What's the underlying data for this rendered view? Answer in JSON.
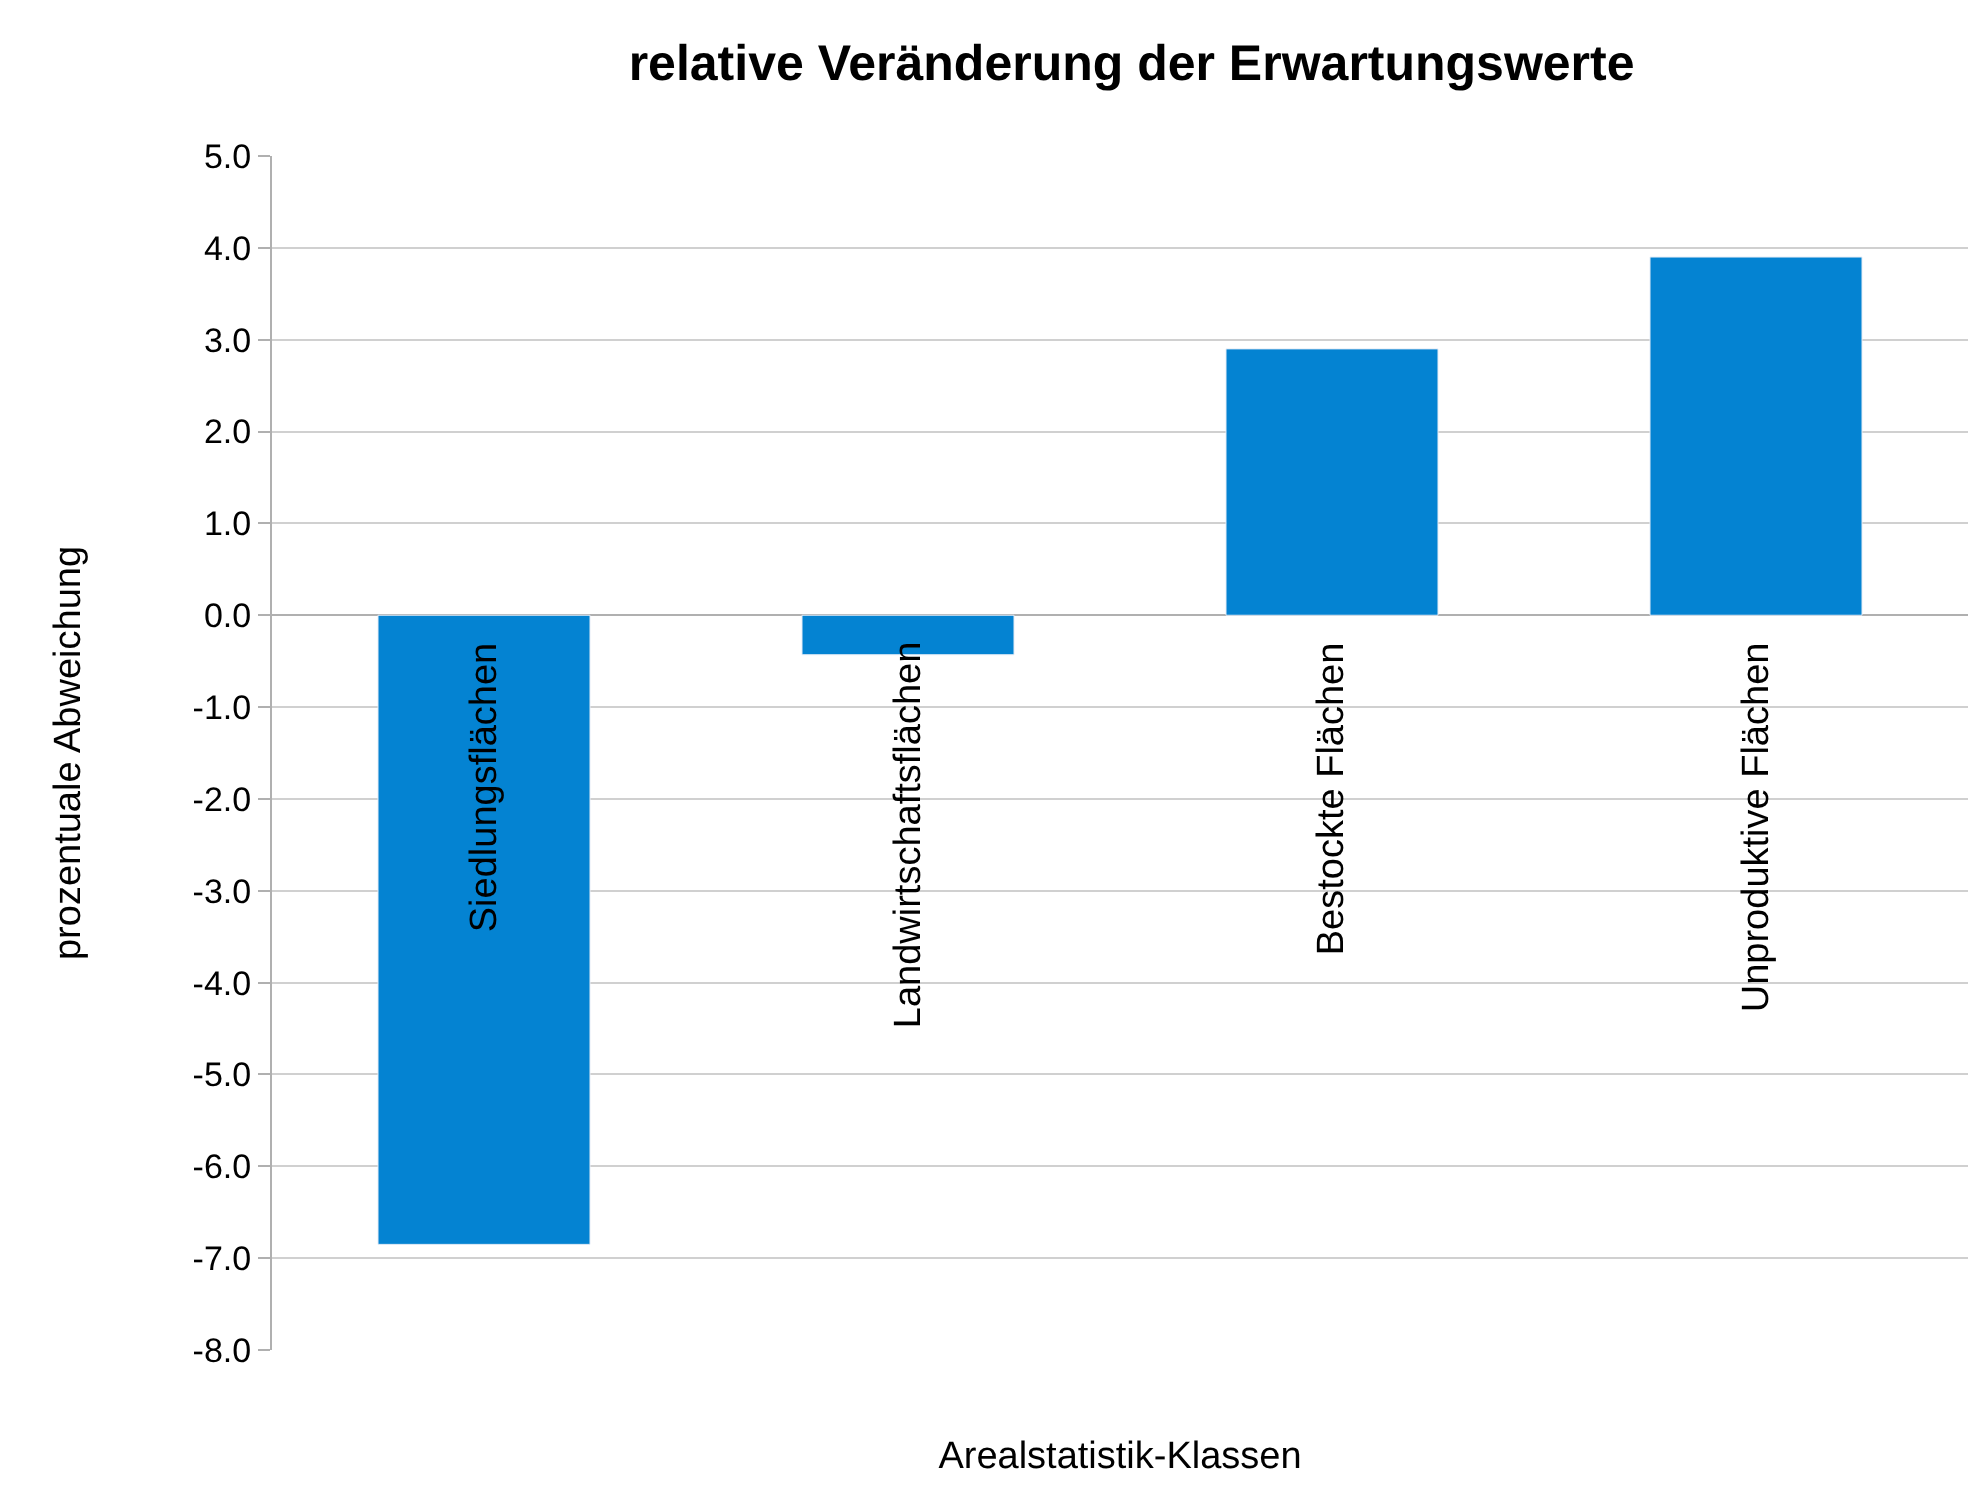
{
  "chart_data": {
    "type": "bar",
    "title": "relative Veränderung der Erwartungswerte",
    "xlabel": "Arealstatistik-Klassen",
    "ylabel": "prozentuale Abweichung",
    "categories": [
      "Siedlungsflächen",
      "Landwirtschaftsflächen",
      "Bestockte Flächen",
      "Unproduktive Flächen"
    ],
    "values": [
      -6.85,
      -0.43,
      2.9,
      3.9
    ],
    "color": "#0483d2",
    "ylim": [
      -8,
      5
    ],
    "yticks": [
      {
        "value": -8,
        "label": "-8.0"
      },
      {
        "value": -7,
        "label": "-7.0"
      },
      {
        "value": -6,
        "label": "-6.0"
      },
      {
        "value": -5,
        "label": "-5.0"
      },
      {
        "value": -4,
        "label": "-4.0"
      },
      {
        "value": -3,
        "label": "-3.0"
      },
      {
        "value": -2,
        "label": "-2.0"
      },
      {
        "value": -1,
        "label": "-1.0"
      },
      {
        "value": 0,
        "label": "0.0"
      },
      {
        "value": 1,
        "label": "1.0"
      },
      {
        "value": 2,
        "label": "2.0"
      },
      {
        "value": 3,
        "label": "3.0"
      },
      {
        "value": 4,
        "label": "4.0"
      },
      {
        "value": 5,
        "label": "5.0"
      }
    ],
    "grid": "y"
  }
}
